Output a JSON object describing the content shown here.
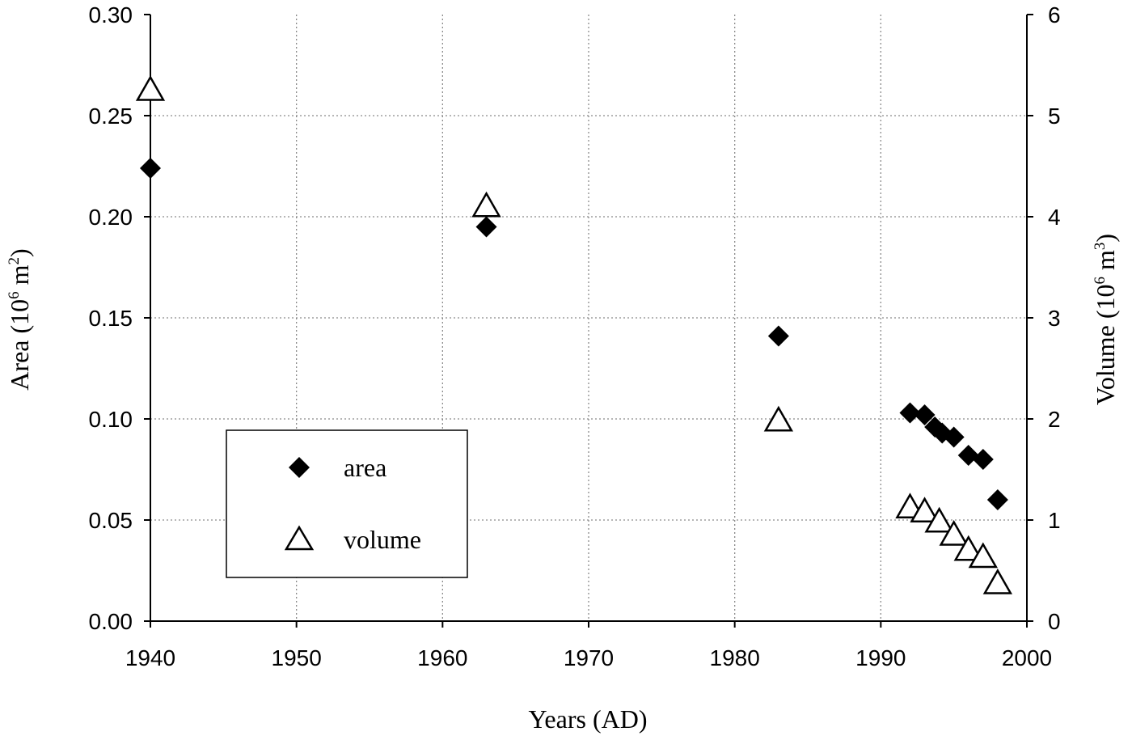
{
  "chart_data": {
    "type": "scatter",
    "xlabel": "Years (AD)",
    "ylabel_left": {
      "text": "Area (10",
      "sup": "6",
      "mid": " m",
      "sup2": "2",
      "end": ")"
    },
    "ylabel_right": {
      "text": "Volume (10",
      "sup": "6",
      "mid": " m",
      "sup2": "3",
      "end": ")"
    },
    "xlim": [
      1940,
      2000
    ],
    "ylim_left": [
      0,
      0.3
    ],
    "ylim_right": [
      0,
      6
    ],
    "x_ticks": [
      "1940",
      "1950",
      "1960",
      "1970",
      "1980",
      "1990",
      "2000"
    ],
    "y_left_ticks": [
      "0.00",
      "0.05",
      "0.10",
      "0.15",
      "0.20",
      "0.25",
      "0.30"
    ],
    "y_right_ticks": [
      "0",
      "1",
      "2",
      "3",
      "4",
      "5",
      "6"
    ],
    "grid": true,
    "legend_placement": "lower-left",
    "series": [
      {
        "name": "area",
        "axis": "left",
        "marker": "filled-diamond",
        "color": "#000000",
        "points": [
          [
            1940,
            0.224
          ],
          [
            1963,
            0.195
          ],
          [
            1983,
            0.141
          ],
          [
            1992,
            0.103
          ],
          [
            1993,
            0.102
          ],
          [
            1993.7,
            0.096
          ],
          [
            1994.2,
            0.093
          ],
          [
            1995,
            0.091
          ],
          [
            1996,
            0.082
          ],
          [
            1997,
            0.08
          ],
          [
            1998,
            0.06
          ]
        ]
      },
      {
        "name": "volume",
        "axis": "right",
        "marker": "open-triangle",
        "color": "#000000",
        "points": [
          [
            1940,
            5.25
          ],
          [
            1963,
            4.1
          ],
          [
            1983,
            1.98
          ],
          [
            1992,
            1.12
          ],
          [
            1993,
            1.08
          ],
          [
            1994,
            0.98
          ],
          [
            1995,
            0.85
          ],
          [
            1996,
            0.7
          ],
          [
            1997,
            0.63
          ],
          [
            1998,
            0.37
          ]
        ]
      }
    ]
  }
}
